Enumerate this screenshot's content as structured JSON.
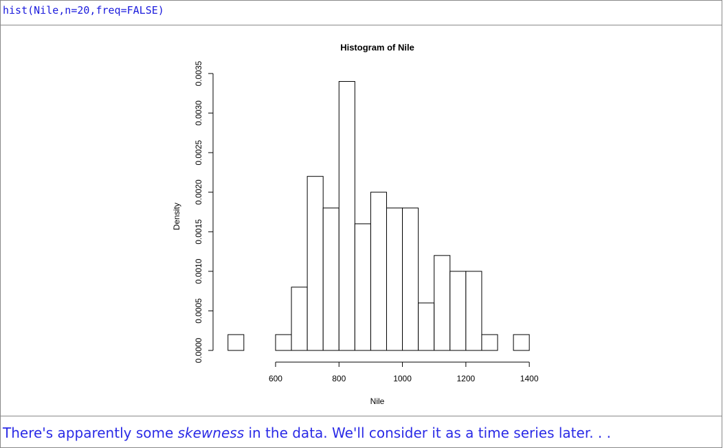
{
  "code": "hist(Nile,n=20,freq=FALSE)",
  "chart_data": {
    "type": "histogram",
    "title": "Histogram of Nile",
    "x_label": "Nile",
    "y_label": "Density",
    "bins": [
      450,
      500,
      550,
      600,
      650,
      700,
      750,
      800,
      850,
      900,
      950,
      1000,
      1050,
      1100,
      1150,
      1200,
      1250,
      1300,
      1350,
      1400
    ],
    "counts": [
      0.0002,
      0,
      0,
      0.0002,
      0.0008,
      0.0022,
      0.0018,
      0.0034,
      0.0016,
      0.002,
      0.0018,
      0.0018,
      0.0006,
      0.0012,
      0.001,
      0.001,
      0.0002,
      0,
      0.0002
    ],
    "color": "#ffffff",
    "edge_color": "#000000",
    "xlim": [
      412,
      1438
    ],
    "xticks": [
      600,
      800,
      1000,
      1200,
      1400
    ],
    "ylim": [
      0,
      0.00354
    ],
    "yticks": [
      {
        "value": 0,
        "label": "0.0000"
      },
      {
        "value": 0.0005,
        "label": "0.0005"
      },
      {
        "value": 0.001,
        "label": "0.0010"
      },
      {
        "value": 0.0015,
        "label": "0.0015"
      },
      {
        "value": 0.002,
        "label": "0.0020"
      },
      {
        "value": 0.0025,
        "label": "0.0025"
      },
      {
        "value": 0.003,
        "label": "0.0030"
      },
      {
        "value": 0.0035,
        "label": "0.0035"
      }
    ],
    "grid": false
  },
  "caption": {
    "before": "There's apparently some ",
    "emphasis": "skewness",
    "after": " in the data. We'll consider it as a time series later. . ."
  }
}
